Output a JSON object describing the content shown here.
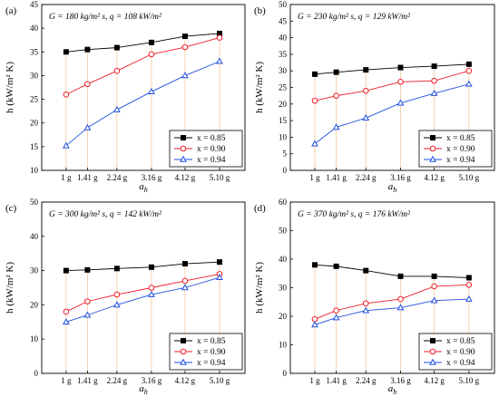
{
  "x_tick_labels": [
    "1 g",
    "1.41 g",
    "2.24 g",
    "3.16 g",
    "4.12 g",
    "5.10 g"
  ],
  "x_axis_label": "a",
  "x_axis_label_sub": "h",
  "y_axis_label": "h (kW/m² K)",
  "legend_labels": [
    "x = 0.85",
    "x = 0.90",
    "x = 0.94"
  ],
  "series_colors": [
    "#000000",
    "#ee1c25",
    "#1f4fe0"
  ],
  "grid_line_color": "#f6c79a",
  "chart_data": [
    {
      "type": "line",
      "panel": "(a)",
      "condition": "G = 180 kg/m² s, q = 108 kW/m²",
      "x": [
        1.0,
        1.41,
        2.24,
        3.16,
        4.12,
        5.1
      ],
      "ylim": [
        10,
        45
      ],
      "yticks": [
        10,
        15,
        20,
        25,
        30,
        35,
        40,
        45
      ],
      "series": [
        {
          "name": "x = 0.85",
          "marker": "square",
          "values": [
            35,
            35.5,
            35.9,
            37,
            38.3,
            38.9
          ]
        },
        {
          "name": "x = 0.90",
          "marker": "circle",
          "values": [
            26,
            28.2,
            31,
            34.5,
            36,
            38
          ]
        },
        {
          "name": "x = 0.94",
          "marker": "triangle",
          "values": [
            15.2,
            19,
            22.8,
            26.6,
            30,
            33
          ]
        }
      ]
    },
    {
      "type": "line",
      "panel": "(b)",
      "condition": "G = 230 kg/m² s, q = 129 kW/m²",
      "x": [
        1.0,
        1.41,
        2.24,
        3.16,
        4.12,
        5.1
      ],
      "ylim": [
        0,
        50
      ],
      "yticks": [
        0,
        5,
        10,
        15,
        20,
        25,
        30,
        35,
        40,
        45,
        50
      ],
      "series": [
        {
          "name": "x = 0.85",
          "marker": "square",
          "values": [
            29,
            29.6,
            30.3,
            31,
            31.4,
            32
          ]
        },
        {
          "name": "x = 0.90",
          "marker": "circle",
          "values": [
            21,
            22.5,
            24,
            26.7,
            27,
            30
          ]
        },
        {
          "name": "x = 0.94",
          "marker": "triangle",
          "values": [
            8,
            13,
            15.8,
            20.3,
            23.2,
            26
          ]
        }
      ]
    },
    {
      "type": "line",
      "panel": "(c)",
      "condition": "G = 300 kg/m² s, q = 142 kW/m²",
      "x": [
        1.0,
        1.41,
        2.24,
        3.16,
        4.12,
        5.1
      ],
      "ylim": [
        0,
        50
      ],
      "yticks": [
        0,
        10,
        20,
        30,
        40,
        50
      ],
      "series": [
        {
          "name": "x = 0.85",
          "marker": "square",
          "values": [
            30,
            30.2,
            30.6,
            31,
            32,
            32.5
          ]
        },
        {
          "name": "x = 0.90",
          "marker": "circle",
          "values": [
            18,
            21,
            23,
            25,
            27,
            29
          ]
        },
        {
          "name": "x = 0.94",
          "marker": "triangle",
          "values": [
            15,
            17,
            20,
            23,
            25,
            28
          ]
        }
      ]
    },
    {
      "type": "line",
      "panel": "(d)",
      "condition": "G = 370 kg/m² s, q = 176 kW/m²",
      "x": [
        1.0,
        1.41,
        2.24,
        3.16,
        4.12,
        5.1
      ],
      "ylim": [
        0,
        60
      ],
      "yticks": [
        0,
        10,
        20,
        30,
        40,
        50,
        60
      ],
      "series": [
        {
          "name": "x = 0.85",
          "marker": "square",
          "values": [
            38,
            37.5,
            36,
            34,
            34,
            33.5
          ]
        },
        {
          "name": "x = 0.90",
          "marker": "circle",
          "values": [
            19,
            22,
            24.5,
            26,
            30.5,
            31
          ]
        },
        {
          "name": "x = 0.94",
          "marker": "triangle",
          "values": [
            17,
            19.5,
            22,
            23,
            25.5,
            26
          ]
        }
      ]
    }
  ]
}
